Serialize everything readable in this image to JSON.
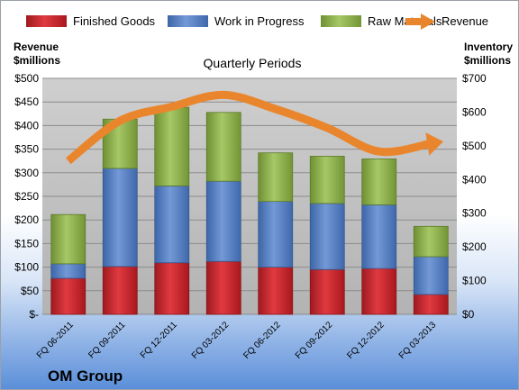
{
  "chart_data": {
    "type": "bar",
    "title": "Quarterly Periods",
    "company": "OM Group",
    "left_axis_label": [
      "Revenue",
      "$millions"
    ],
    "right_axis_label": [
      "Inventory",
      "$millions"
    ],
    "left_ticks": [
      "$-",
      "$50",
      "$100",
      "$150",
      "$200",
      "$250",
      "$300",
      "$350",
      "$400",
      "$450",
      "$500"
    ],
    "right_ticks": [
      "$0",
      "$100",
      "$200",
      "$300",
      "$400",
      "$500",
      "$600",
      "$700"
    ],
    "left_range": [
      0,
      500
    ],
    "right_range": [
      0,
      700
    ],
    "categories": [
      "FQ 06-2011",
      "FQ 09-2011",
      "FQ 12-2011",
      "FQ 03-2012",
      "FQ 06-2012",
      "FQ 09-2012",
      "FQ 12-2012",
      "FQ 03-2013"
    ],
    "stack_series": [
      {
        "name": "Finished Goods",
        "color": "#c0222a",
        "values": [
          107,
          142,
          153,
          157,
          140,
          133,
          136,
          59
        ]
      },
      {
        "name": "Work in Progress",
        "color": "#4f7ac0",
        "values": [
          43,
          291,
          228,
          238,
          195,
          196,
          189,
          112
        ]
      },
      {
        "name": "Raw Materials",
        "color": "#8db04a",
        "values": [
          146,
          146,
          233,
          204,
          144,
          140,
          136,
          90
        ]
      }
    ],
    "line_series": {
      "name": "Revenue",
      "axis": "left",
      "color": "#e9862d",
      "values": [
        325,
        410,
        440,
        465,
        435,
        395,
        345,
        362
      ]
    },
    "legend_position": "top",
    "grid": true
  }
}
